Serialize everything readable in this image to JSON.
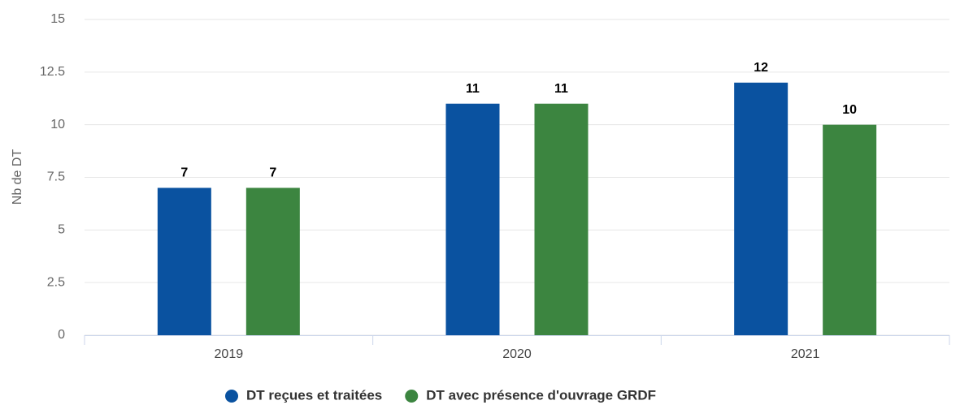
{
  "chart_data": {
    "type": "bar",
    "y_label": "Nb de DT",
    "categories": [
      "2019",
      "2020",
      "2021"
    ],
    "series": [
      {
        "name": "DT reçues et traitées",
        "color": "#0a52a0",
        "values": [
          7,
          11,
          12
        ]
      },
      {
        "name": "DT avec présence d'ouvrage GRDF",
        "color": "#3c8540",
        "values": [
          7,
          11,
          10
        ]
      }
    ],
    "ylim": [
      0,
      15
    ],
    "yticks": [
      0,
      2.5,
      5,
      7.5,
      10,
      12.5,
      15
    ],
    "grid": true,
    "legend": "bottom"
  }
}
